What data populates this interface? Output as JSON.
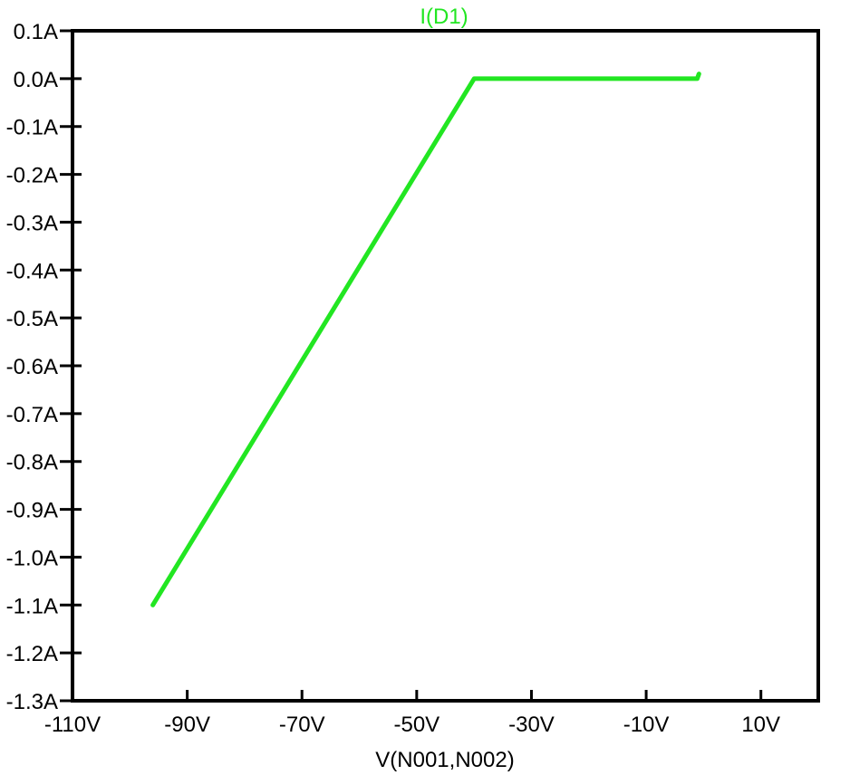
{
  "chart_data": {
    "type": "line",
    "title": "I(D1)",
    "xlabel": "V(N001,N002)",
    "ylabel": "",
    "xlim": [
      -110,
      20
    ],
    "ylim": [
      -1.3,
      0.1
    ],
    "x_ticks": [
      {
        "value": -110,
        "label": "-110V"
      },
      {
        "value": -90,
        "label": "-90V"
      },
      {
        "value": -70,
        "label": "-70V"
      },
      {
        "value": -50,
        "label": "-50V"
      },
      {
        "value": -30,
        "label": "-30V"
      },
      {
        "value": -10,
        "label": "-10V"
      },
      {
        "value": 10,
        "label": "10V"
      }
    ],
    "y_ticks": [
      {
        "value": 0.1,
        "label": "0.1A"
      },
      {
        "value": 0.0,
        "label": "0.0A"
      },
      {
        "value": -0.1,
        "label": "-0.1A"
      },
      {
        "value": -0.2,
        "label": "-0.2A"
      },
      {
        "value": -0.3,
        "label": "-0.3A"
      },
      {
        "value": -0.4,
        "label": "-0.4A"
      },
      {
        "value": -0.5,
        "label": "-0.5A"
      },
      {
        "value": -0.6,
        "label": "-0.6A"
      },
      {
        "value": -0.7,
        "label": "-0.7A"
      },
      {
        "value": -0.8,
        "label": "-0.8A"
      },
      {
        "value": -0.9,
        "label": "-0.9A"
      },
      {
        "value": -1.0,
        "label": "-1.0A"
      },
      {
        "value": -1.1,
        "label": "-1.1A"
      },
      {
        "value": -1.2,
        "label": "-1.2A"
      },
      {
        "value": -1.3,
        "label": "-1.3A"
      }
    ],
    "grid": false,
    "series": [
      {
        "name": "I(D1)",
        "color": "#22e622",
        "x": [
          -96,
          -40,
          -1.1,
          -0.8
        ],
        "y": [
          -1.1,
          0.0,
          0.0,
          0.01
        ]
      }
    ]
  }
}
